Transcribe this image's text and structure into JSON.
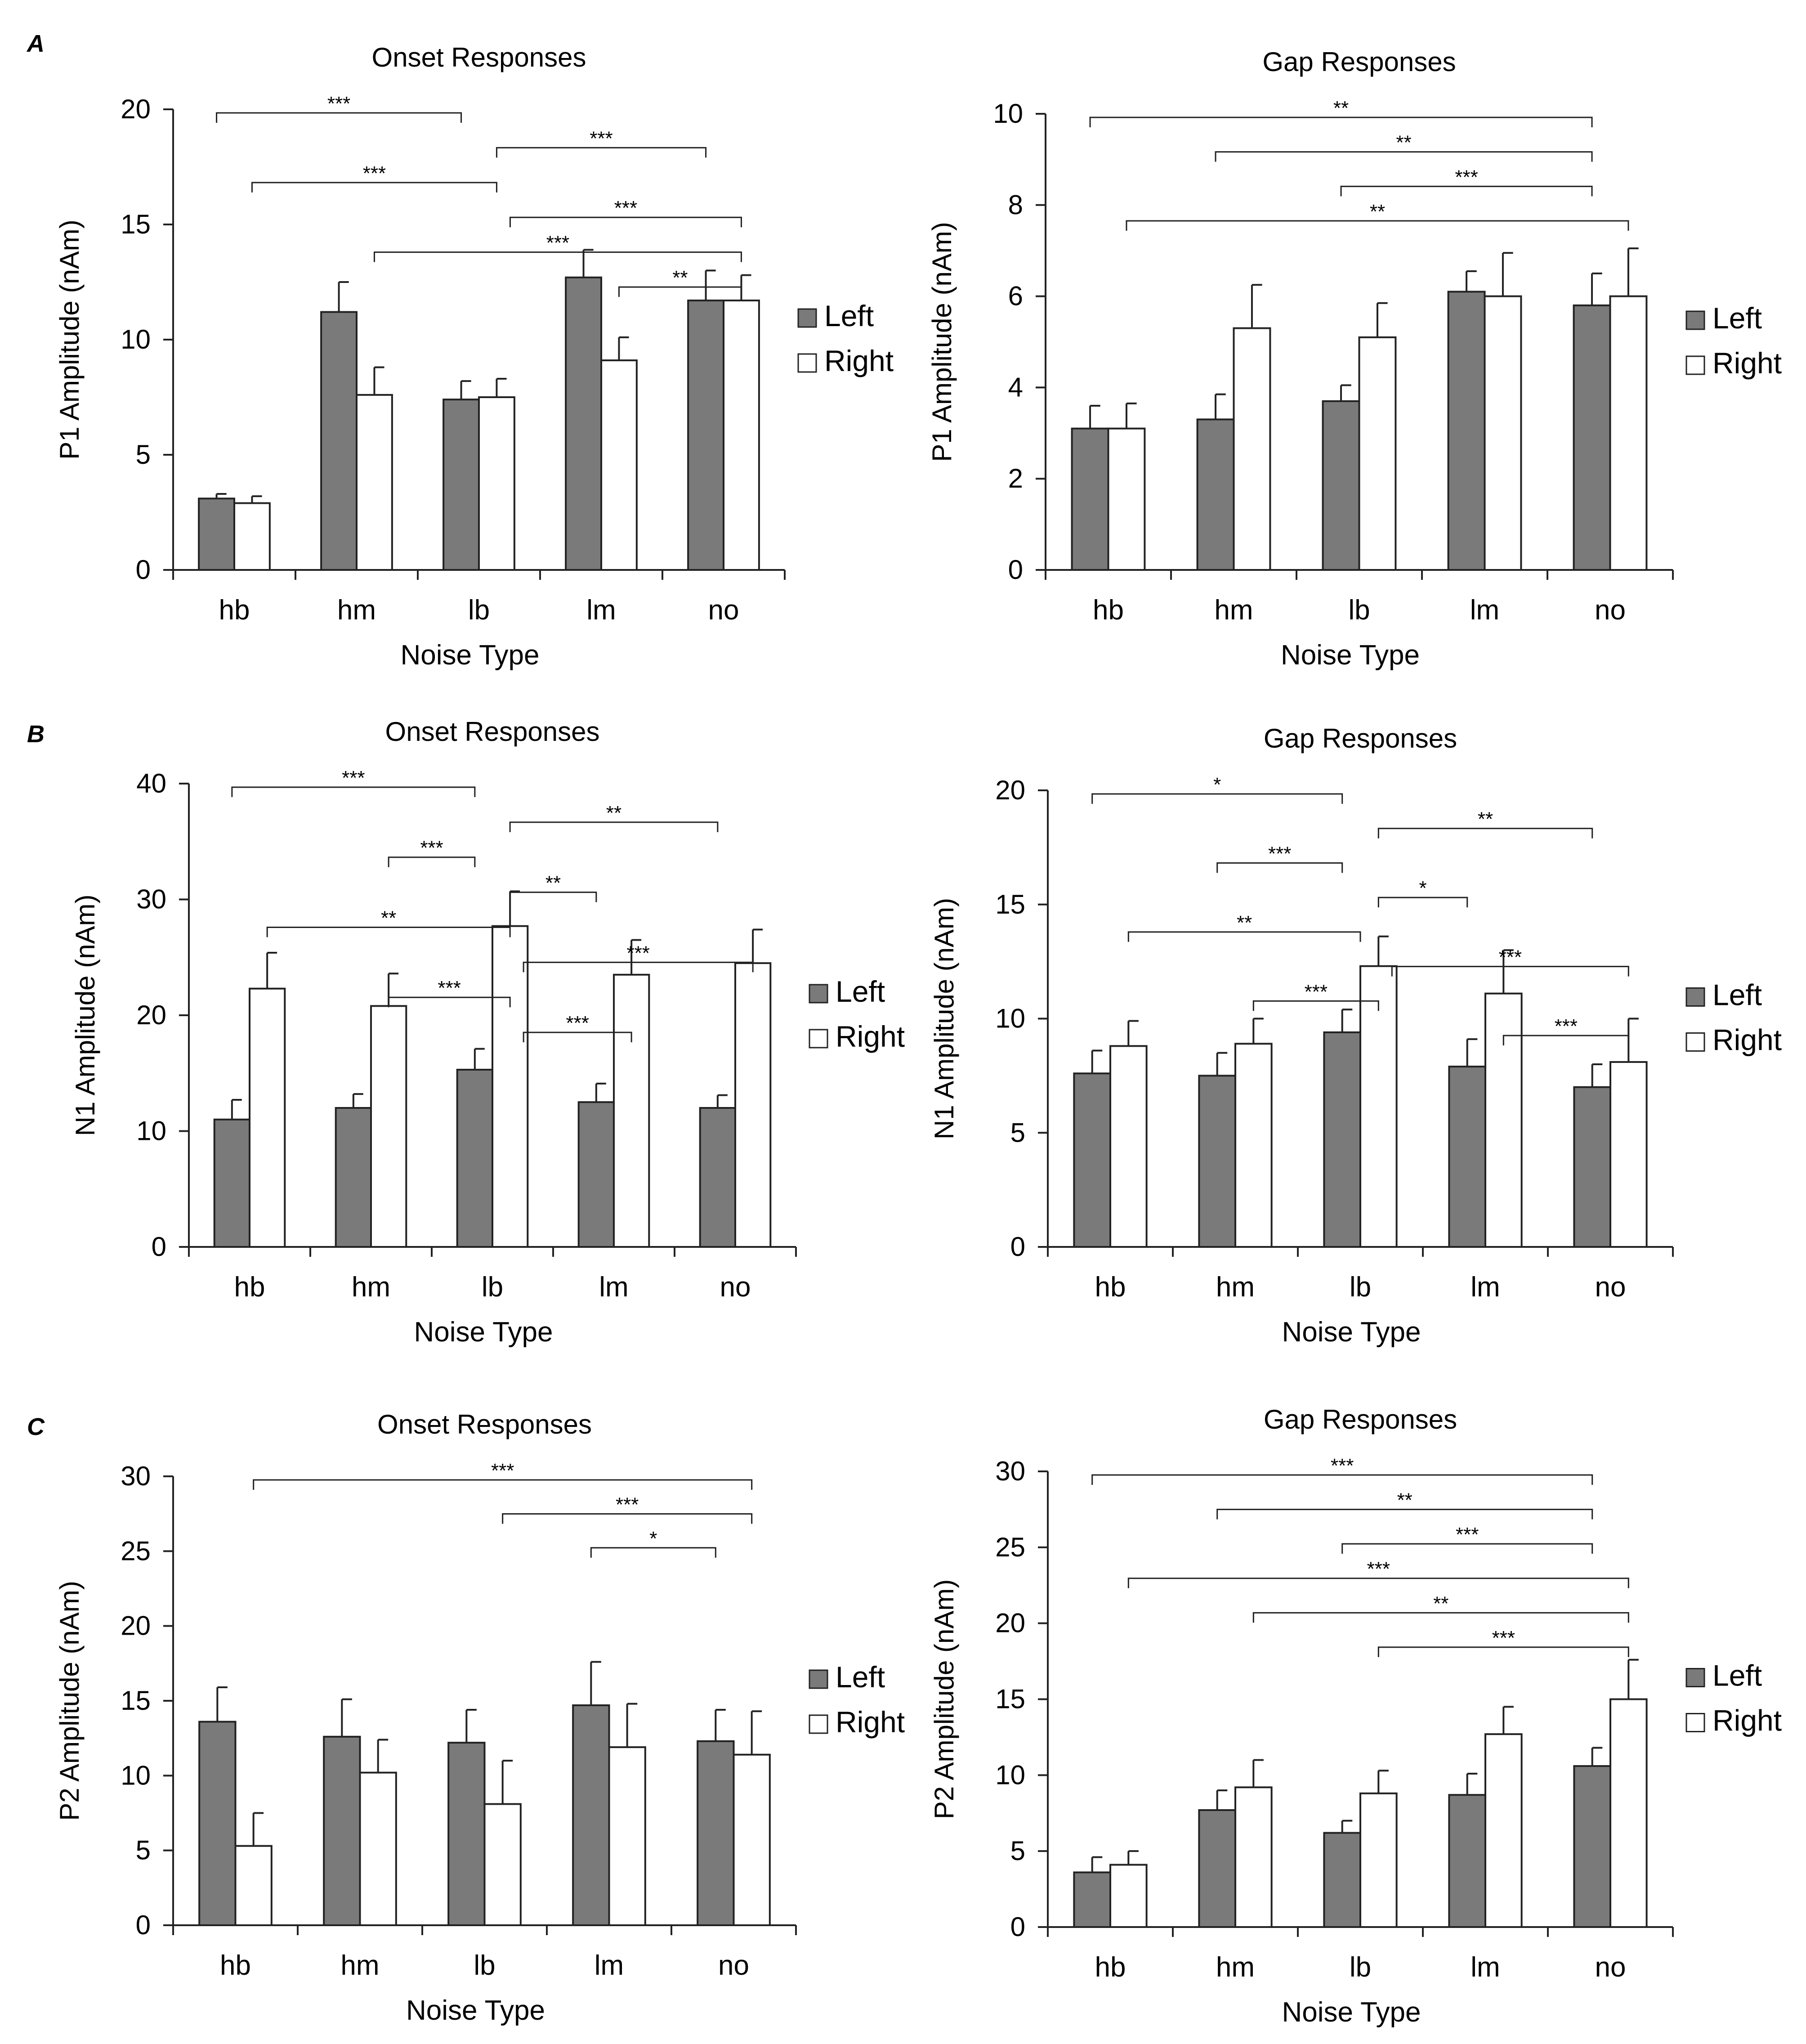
{
  "colors": {
    "left": "#7a7a7a",
    "right": "#ffffff",
    "stroke": "#222222"
  },
  "legend": {
    "left": "Left",
    "right": "Right"
  },
  "chart_data": [
    {
      "id": "A-onset",
      "panel": "A",
      "type": "bar",
      "title": "Onset Responses",
      "xlabel": "Noise Type",
      "ylabel": "P1 Amplitude (nAm)",
      "categories": [
        "hb",
        "hm",
        "lb",
        "lm",
        "no"
      ],
      "ylim": [
        0,
        20
      ],
      "yticks": [
        0,
        5,
        10,
        15,
        20
      ],
      "series": [
        {
          "name": "Left",
          "values": [
            3.1,
            11.2,
            7.4,
            12.7,
            11.7
          ],
          "errors": [
            0.2,
            1.3,
            0.8,
            1.2,
            1.3
          ]
        },
        {
          "name": "Right",
          "values": [
            2.9,
            7.6,
            7.5,
            9.1,
            11.7
          ],
          "errors": [
            0.3,
            1.2,
            0.8,
            1.0,
            1.1
          ]
        }
      ],
      "significance": [
        {
          "from": "hb.left",
          "to": "lb.left",
          "label": "***"
        },
        {
          "from": "lb.right",
          "to": "no.left",
          "label": "***"
        },
        {
          "from": "hb.right",
          "to": "lb.right",
          "label": "***"
        },
        {
          "from": "lb.right2",
          "to": "no.right",
          "label": "***"
        },
        {
          "from": "hm.right",
          "to": "no.right",
          "label": "***"
        },
        {
          "from": "lm.right",
          "to": "no.right",
          "label": "**"
        }
      ]
    },
    {
      "id": "A-gap",
      "panel": "",
      "type": "bar",
      "title": "Gap Responses",
      "xlabel": "Noise Type",
      "ylabel": "P1 Amplitude (nAm)",
      "categories": [
        "hb",
        "hm",
        "lb",
        "lm",
        "no"
      ],
      "ylim": [
        0,
        10
      ],
      "yticks": [
        0,
        2,
        4,
        6,
        8,
        10
      ],
      "series": [
        {
          "name": "Left",
          "values": [
            3.1,
            3.3,
            3.7,
            6.1,
            5.8
          ],
          "errors": [
            0.5,
            0.55,
            0.35,
            0.45,
            0.7
          ]
        },
        {
          "name": "Right",
          "values": [
            3.1,
            5.3,
            5.1,
            6.0,
            6.0
          ],
          "errors": [
            0.55,
            0.95,
            0.75,
            0.95,
            1.05
          ]
        }
      ],
      "significance": [
        {
          "from": "hb.left",
          "to": "no.left",
          "label": "**"
        },
        {
          "from": "hm.left",
          "to": "no.left",
          "label": "**"
        },
        {
          "from": "lb.left",
          "to": "no.left",
          "label": "***"
        },
        {
          "from": "hb.right",
          "to": "no.right",
          "label": "**"
        }
      ]
    },
    {
      "id": "B-onset",
      "panel": "B",
      "type": "bar",
      "title": "Onset Responses",
      "xlabel": "Noise Type",
      "ylabel": "N1 Amplitude (nAm)",
      "categories": [
        "hb",
        "hm",
        "lb",
        "lm",
        "no"
      ],
      "ylim": [
        0,
        40
      ],
      "yticks": [
        0,
        10,
        20,
        30,
        40
      ],
      "series": [
        {
          "name": "Left",
          "values": [
            11.0,
            12.0,
            15.3,
            12.5,
            12.0
          ],
          "errors": [
            1.7,
            1.2,
            1.8,
            1.6,
            1.1
          ]
        },
        {
          "name": "Right",
          "values": [
            22.3,
            20.8,
            27.7,
            23.5,
            24.5
          ],
          "errors": [
            3.1,
            2.8,
            3.0,
            3.0,
            2.9
          ]
        }
      ],
      "significance": [
        {
          "from": "hb.left",
          "to": "lb.left",
          "label": "***"
        },
        {
          "from": "lb.right",
          "to": "no.left",
          "label": "**"
        },
        {
          "from": "hm.right",
          "to": "lb.left",
          "label": "***"
        },
        {
          "from": "lb.right",
          "to": "lm.left",
          "label": "**"
        },
        {
          "from": "hb.right",
          "to": "lb.right",
          "label": "**"
        },
        {
          "from": "lb.right2",
          "to": "no.right",
          "label": "***"
        },
        {
          "from": "hm.right",
          "to": "lb.right",
          "label": "***"
        },
        {
          "from": "lb.right2",
          "to": "lm.right",
          "label": "***"
        }
      ]
    },
    {
      "id": "B-gap",
      "panel": "",
      "type": "bar",
      "title": "Gap Responses",
      "xlabel": "Noise Type",
      "ylabel": "N1 Amplitude (nAm)",
      "categories": [
        "hb",
        "hm",
        "lb",
        "lm",
        "no"
      ],
      "ylim": [
        0,
        20
      ],
      "yticks": [
        0,
        5,
        10,
        15,
        20
      ],
      "series": [
        {
          "name": "Left",
          "values": [
            7.6,
            7.5,
            9.4,
            7.9,
            7.0
          ],
          "errors": [
            1.0,
            1.0,
            1.0,
            1.2,
            1.0
          ]
        },
        {
          "name": "Right",
          "values": [
            8.8,
            8.9,
            12.3,
            11.1,
            8.1
          ],
          "errors": [
            1.1,
            1.1,
            1.3,
            1.9,
            1.9
          ]
        }
      ],
      "significance": [
        {
          "from": "hb.left",
          "to": "lb.left",
          "label": "*"
        },
        {
          "from": "lb.right",
          "to": "no.left",
          "label": "**"
        },
        {
          "from": "hm.left",
          "to": "lb.left",
          "label": "***"
        },
        {
          "from": "lb.right",
          "to": "lm.left",
          "label": "*"
        },
        {
          "from": "hb.right",
          "to": "lb.mid",
          "label": "**"
        },
        {
          "from": "lb.right2",
          "to": "no.right",
          "label": "***"
        },
        {
          "from": "hm.right",
          "to": "lb.right",
          "label": "***"
        },
        {
          "from": "lm.right",
          "to": "no.right",
          "label": "***"
        }
      ]
    },
    {
      "id": "C-onset",
      "panel": "C",
      "type": "bar",
      "title": "Onset Responses",
      "xlabel": "Noise Type",
      "ylabel": "P2 Amplitude (nAm)",
      "categories": [
        "hb",
        "hm",
        "lb",
        "lm",
        "no"
      ],
      "ylim": [
        0,
        30
      ],
      "yticks": [
        0,
        5,
        10,
        15,
        20,
        25,
        30
      ],
      "series": [
        {
          "name": "Left",
          "values": [
            13.6,
            12.6,
            12.2,
            14.7,
            12.3
          ],
          "errors": [
            2.3,
            2.5,
            2.2,
            2.9,
            2.1
          ]
        },
        {
          "name": "Right",
          "values": [
            5.3,
            10.2,
            8.1,
            11.9,
            11.4
          ],
          "errors": [
            2.2,
            2.2,
            2.9,
            2.9,
            2.9
          ]
        }
      ],
      "significance": [
        {
          "from": "hb.right",
          "to": "no.right",
          "label": "***"
        },
        {
          "from": "lb.right",
          "to": "no.right",
          "label": "***"
        },
        {
          "from": "lm.left",
          "to": "no.left",
          "label": "*"
        }
      ]
    },
    {
      "id": "C-gap",
      "panel": "",
      "type": "bar",
      "title": "Gap Responses",
      "xlabel": "Noise Type",
      "ylabel": "P2 Amplitude (nAm)",
      "categories": [
        "hb",
        "hm",
        "lb",
        "lm",
        "no"
      ],
      "ylim": [
        0,
        30
      ],
      "yticks": [
        0,
        5,
        10,
        15,
        20,
        25,
        30
      ],
      "series": [
        {
          "name": "Left",
          "values": [
            3.6,
            7.7,
            6.2,
            8.7,
            10.6
          ],
          "errors": [
            1.0,
            1.3,
            0.8,
            1.4,
            1.2
          ]
        },
        {
          "name": "Right",
          "values": [
            4.1,
            9.2,
            8.8,
            12.7,
            15.0
          ],
          "errors": [
            0.9,
            1.8,
            1.5,
            1.8,
            2.6
          ]
        }
      ],
      "significance": [
        {
          "from": "hb.left",
          "to": "no.left",
          "label": "***"
        },
        {
          "from": "hm.left",
          "to": "no.left",
          "label": "**"
        },
        {
          "from": "lb.left",
          "to": "no.left",
          "label": "***"
        },
        {
          "from": "hb.right",
          "to": "no.right",
          "label": "***"
        },
        {
          "from": "hm.right",
          "to": "no.right",
          "label": "**"
        },
        {
          "from": "lb.right",
          "to": "no.right",
          "label": "***"
        }
      ]
    }
  ]
}
